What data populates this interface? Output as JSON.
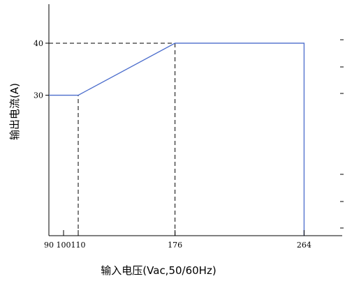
{
  "chart_data": {
    "type": "line",
    "xlabel": "输入电压(Vac,50/60Hz)",
    "ylabel": "输出电流(A)",
    "x_ticks": [
      90,
      100,
      110,
      176,
      264
    ],
    "y_ticks": [
      30,
      40
    ],
    "xlim": [
      90,
      290
    ],
    "ylim": [
      3,
      47.5
    ],
    "grid": false,
    "series": [
      {
        "x": [
          90,
          110,
          176,
          264,
          264
        ],
        "y": [
          30,
          30,
          40,
          40,
          3
        ]
      }
    ],
    "reference_lines": [
      {
        "orientation": "horizontal",
        "y": 40,
        "x_from": 90,
        "x_to": 176,
        "style": "dashed"
      },
      {
        "orientation": "vertical",
        "x": 110,
        "y_from": 3,
        "y_to": 30,
        "style": "dashed"
      },
      {
        "orientation": "vertical",
        "x": 176,
        "y_from": 3,
        "y_to": 40,
        "style": "dashed"
      }
    ],
    "colors": {
      "line": "#4a6ccc",
      "reference": "#000000",
      "axis": "#000000"
    }
  }
}
